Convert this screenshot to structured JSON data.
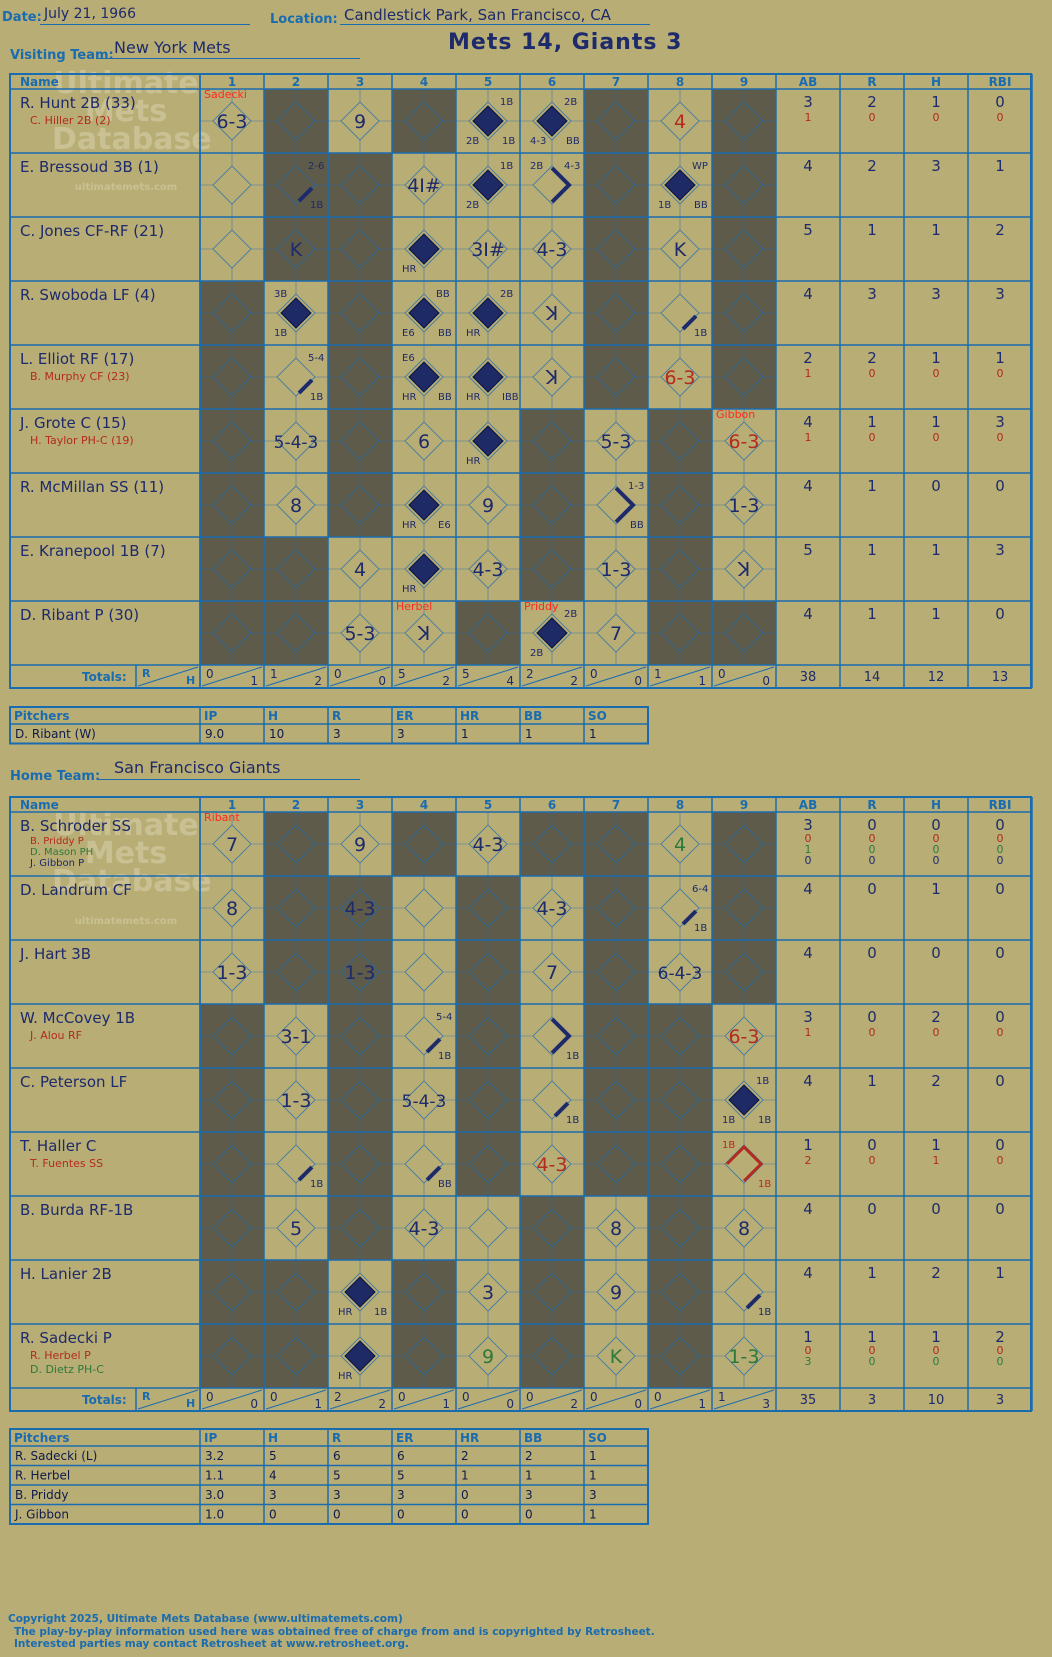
{
  "header": {
    "date_label": "Date:",
    "date": "July 21, 1966",
    "location_label": "Location:",
    "location": "Candlestick Park, San Francisco, CA",
    "visiting_label": "Visiting Team:",
    "visiting_team": "New York Mets",
    "home_label": "Home Team:",
    "home_team": "San Francisco Giants",
    "result": "Mets 14, Giants 3"
  },
  "columns": {
    "name": "Name",
    "innings": [
      "1",
      "2",
      "3",
      "4",
      "5",
      "6",
      "7",
      "8",
      "9"
    ],
    "stats": [
      "AB",
      "R",
      "H",
      "RBI"
    ],
    "totals_label": "Totals:",
    "r_label": "R",
    "h_label": "H"
  },
  "pitcher_headers": [
    "Pitchers",
    "IP",
    "H",
    "R",
    "ER",
    "HR",
    "BB",
    "SO"
  ],
  "watermark": {
    "line1": "Ultimate",
    "line2": "Mets",
    "line3": "Database",
    "url": "ultimatemets.com"
  },
  "visitor": {
    "shaded": [
      [
        2,
        4,
        7,
        9
      ],
      [
        2,
        3,
        7,
        9
      ],
      [
        2,
        3,
        7,
        9
      ],
      [
        1,
        3,
        7,
        9
      ],
      [
        1,
        3,
        7,
        9
      ],
      [
        1,
        3,
        6,
        8
      ],
      [
        1,
        3,
        6,
        8
      ],
      [
        1,
        2,
        6,
        8
      ],
      [
        1,
        2,
        5,
        8,
        9
      ]
    ],
    "players": [
      {
        "name": "R. Hunt 2B (33)",
        "subs": [
          {
            "name": "C. Hiller 2B (2)",
            "color": "#b42a1e"
          }
        ],
        "ab": "3",
        "r": "2",
        "h": "1",
        "rbi": "0",
        "sub_stats": [
          [
            "1",
            "0",
            "0",
            "0"
          ]
        ]
      },
      {
        "name": "E. Bressoud 3B (1)",
        "subs": [],
        "ab": "4",
        "r": "2",
        "h": "3",
        "rbi": "1",
        "sub_stats": []
      },
      {
        "name": "C. Jones CF-RF (21)",
        "subs": [],
        "ab": "5",
        "r": "1",
        "h": "1",
        "rbi": "2",
        "sub_stats": []
      },
      {
        "name": "R. Swoboda LF (4)",
        "subs": [],
        "ab": "4",
        "r": "3",
        "h": "3",
        "rbi": "3",
        "sub_stats": []
      },
      {
        "name": "L. Elliot RF (17)",
        "subs": [
          {
            "name": "B. Murphy CF (23)",
            "color": "#b42a1e"
          }
        ],
        "ab": "2",
        "r": "2",
        "h": "1",
        "rbi": "1",
        "sub_stats": [
          [
            "1",
            "0",
            "0",
            "0"
          ]
        ]
      },
      {
        "name": "J. Grote C (15)",
        "subs": [
          {
            "name": "H. Taylor PH-C (19)",
            "color": "#b42a1e"
          }
        ],
        "ab": "4",
        "r": "1",
        "h": "1",
        "rbi": "3",
        "sub_stats": [
          [
            "1",
            "0",
            "0",
            "0"
          ]
        ]
      },
      {
        "name": "R. McMillan SS (11)",
        "subs": [],
        "ab": "4",
        "r": "1",
        "h": "0",
        "rbi": "0",
        "sub_stats": []
      },
      {
        "name": "E. Kranepool 1B (7)",
        "subs": [],
        "ab": "5",
        "r": "1",
        "h": "1",
        "rbi": "3",
        "sub_stats": []
      },
      {
        "name": "D. Ribant P (30)",
        "subs": [],
        "ab": "4",
        "r": "1",
        "h": "1",
        "rbi": "0",
        "sub_stats": []
      }
    ],
    "plays": [
      {
        "row": 0,
        "inn": 1,
        "t": "6-3"
      },
      {
        "row": 0,
        "inn": 3,
        "t": "9"
      },
      {
        "row": 0,
        "inn": 5,
        "d": 1,
        "c": [
          "1B",
          "2B",
          "1B",
          ""
        ]
      },
      {
        "row": 0,
        "inn": 6,
        "d": 1,
        "c": [
          "2B",
          "4-3",
          "BB",
          ""
        ]
      },
      {
        "row": 0,
        "inn": 8,
        "t": "4",
        "col": "#b42a1e"
      },
      {
        "row": 1,
        "inn": 2,
        "p": 1,
        "c": [
          "2-6",
          "",
          "1B",
          ""
        ]
      },
      {
        "row": 1,
        "inn": 4,
        "t": "4I#"
      },
      {
        "row": 1,
        "inn": 5,
        "d": 1,
        "c": [
          "1B",
          "2B",
          "",
          ""
        ]
      },
      {
        "row": 1,
        "inn": 6,
        "p": 2,
        "c": [
          "4-3",
          "",
          "",
          "2B"
        ]
      },
      {
        "row": 1,
        "inn": 8,
        "d": 1,
        "c": [
          "WP",
          "1B",
          "BB",
          ""
        ]
      },
      {
        "row": 2,
        "inn": 2,
        "t": "K"
      },
      {
        "row": 2,
        "inn": 4,
        "d": 1,
        "c": [
          "",
          "HR",
          "",
          ""
        ]
      },
      {
        "row": 2,
        "inn": 5,
        "t": "3I#"
      },
      {
        "row": 2,
        "inn": 6,
        "t": "4-3"
      },
      {
        "row": 2,
        "inn": 8,
        "t": "K"
      },
      {
        "row": 3,
        "inn": 2,
        "d": 1,
        "c": [
          "",
          "1B",
          "",
          "3B"
        ]
      },
      {
        "row": 3,
        "inn": 4,
        "d": 1,
        "c": [
          "BB",
          "E6",
          "BB",
          ""
        ]
      },
      {
        "row": 3,
        "inn": 5,
        "d": 1,
        "c": [
          "2B",
          "HR",
          "",
          ""
        ]
      },
      {
        "row": 3,
        "inn": 6,
        "t": "ꓘ"
      },
      {
        "row": 3,
        "inn": 8,
        "p": 1,
        "c": [
          "",
          "",
          "1B",
          ""
        ]
      },
      {
        "row": 4,
        "inn": 2,
        "p": 1,
        "c": [
          "5-4",
          "",
          "1B",
          ""
        ]
      },
      {
        "row": 4,
        "inn": 4,
        "d": 1,
        "c": [
          "",
          "HR",
          "BB",
          "E6"
        ]
      },
      {
        "row": 4,
        "inn": 5,
        "d": 1,
        "c": [
          "",
          "HR",
          "IBB",
          ""
        ]
      },
      {
        "row": 4,
        "inn": 6,
        "t": "ꓘ"
      },
      {
        "row": 4,
        "inn": 8,
        "t": "6-3",
        "col": "#b42a1e"
      },
      {
        "row": 5,
        "inn": 2,
        "t": "5-4-3"
      },
      {
        "row": 5,
        "inn": 4,
        "t": "6"
      },
      {
        "row": 5,
        "inn": 5,
        "d": 1,
        "c": [
          "",
          "HR",
          "",
          ""
        ]
      },
      {
        "row": 5,
        "inn": 7,
        "t": "5-3"
      },
      {
        "row": 5,
        "inn": 9,
        "t": "6-3",
        "col": "#b42a1e"
      },
      {
        "row": 6,
        "inn": 2,
        "t": "8"
      },
      {
        "row": 6,
        "inn": 4,
        "d": 1,
        "c": [
          "",
          "HR",
          "E6",
          ""
        ]
      },
      {
        "row": 6,
        "inn": 5,
        "t": "9"
      },
      {
        "row": 6,
        "inn": 7,
        "p": 2,
        "c": [
          "1-3",
          "",
          "BB",
          ""
        ]
      },
      {
        "row": 6,
        "inn": 9,
        "t": "1-3"
      },
      {
        "row": 7,
        "inn": 3,
        "t": "4"
      },
      {
        "row": 7,
        "inn": 4,
        "d": 1,
        "c": [
          "",
          "HR",
          "",
          ""
        ]
      },
      {
        "row": 7,
        "inn": 5,
        "t": "4-3"
      },
      {
        "row": 7,
        "inn": 7,
        "t": "1-3"
      },
      {
        "row": 7,
        "inn": 9,
        "t": "ꓘ"
      },
      {
        "row": 8,
        "inn": 3,
        "t": "5-3"
      },
      {
        "row": 8,
        "inn": 4,
        "t": "ꓘ"
      },
      {
        "row": 8,
        "inn": 6,
        "d": 1,
        "c": [
          "2B",
          "2B",
          "",
          ""
        ]
      },
      {
        "row": 8,
        "inn": 7,
        "t": "7"
      }
    ],
    "changes": [
      {
        "row": 0,
        "inn": 1,
        "name": "Sadecki"
      },
      {
        "row": 5,
        "inn": 9,
        "name": "Gibbon"
      },
      {
        "row": 8,
        "inn": 4,
        "name": "Herbel"
      },
      {
        "row": 8,
        "inn": 6,
        "name": "Priddy"
      }
    ],
    "totals": [
      [
        "0",
        "1"
      ],
      [
        "1",
        "2"
      ],
      [
        "0",
        "0"
      ],
      [
        "5",
        "2"
      ],
      [
        "5",
        "4"
      ],
      [
        "2",
        "2"
      ],
      [
        "0",
        "0"
      ],
      [
        "1",
        "1"
      ],
      [
        "0",
        "0"
      ]
    ],
    "totals_stats": [
      "38",
      "14",
      "12",
      "13"
    ],
    "pitchers": [
      {
        "name": "D. Ribant (W)",
        "ip": "9.0",
        "h": "10",
        "r": "3",
        "er": "3",
        "hr": "1",
        "bb": "1",
        "so": "1"
      }
    ]
  },
  "home": {
    "shaded": [
      [
        2,
        4,
        6,
        7,
        9
      ],
      [
        2,
        3,
        5,
        7,
        9
      ],
      [
        2,
        3,
        5,
        7,
        9
      ],
      [
        1,
        3,
        5,
        7,
        8
      ],
      [
        1,
        3,
        5,
        7,
        8
      ],
      [
        1,
        3,
        5,
        7,
        8
      ],
      [
        1,
        3,
        6,
        8
      ],
      [
        1,
        2,
        4,
        6,
        8
      ],
      [
        1,
        2,
        4,
        6,
        8
      ]
    ],
    "players": [
      {
        "name": "B. Schroder SS",
        "subs": [
          {
            "name": "B. Priddy P",
            "color": "#b42a1e"
          },
          {
            "name": "D. Mason PH",
            "color": "#2b7a3a"
          },
          {
            "name": "J. Gibbon P",
            "color": "#1d2a6b"
          }
        ],
        "ab": "3",
        "r": "0",
        "h": "0",
        "rbi": "0",
        "sub_stats": [
          [
            "0",
            "0",
            "0",
            "0"
          ],
          [
            "1",
            "0",
            "0",
            "0"
          ],
          [
            "0",
            "0",
            "0",
            "0"
          ]
        ]
      },
      {
        "name": "D. Landrum CF",
        "subs": [],
        "ab": "4",
        "r": "0",
        "h": "1",
        "rbi": "0",
        "sub_stats": []
      },
      {
        "name": "J. Hart 3B",
        "subs": [],
        "ab": "4",
        "r": "0",
        "h": "0",
        "rbi": "0",
        "sub_stats": []
      },
      {
        "name": "W. McCovey 1B",
        "subs": [
          {
            "name": "J. Alou RF",
            "color": "#b42a1e"
          }
        ],
        "ab": "3",
        "r": "0",
        "h": "2",
        "rbi": "0",
        "sub_stats": [
          [
            "1",
            "0",
            "0",
            "0"
          ]
        ]
      },
      {
        "name": "C. Peterson LF",
        "subs": [],
        "ab": "4",
        "r": "1",
        "h": "2",
        "rbi": "0",
        "sub_stats": []
      },
      {
        "name": "T. Haller C",
        "subs": [
          {
            "name": "T. Fuentes SS",
            "color": "#b42a1e"
          }
        ],
        "ab": "1",
        "r": "0",
        "h": "1",
        "rbi": "0",
        "sub_stats": [
          [
            "2",
            "0",
            "1",
            "0"
          ]
        ]
      },
      {
        "name": "B. Burda RF-1B",
        "subs": [],
        "ab": "4",
        "r": "0",
        "h": "0",
        "rbi": "0",
        "sub_stats": []
      },
      {
        "name": "H. Lanier 2B",
        "subs": [],
        "ab": "4",
        "r": "1",
        "h": "2",
        "rbi": "1",
        "sub_stats": []
      },
      {
        "name": "R. Sadecki P",
        "subs": [
          {
            "name": "R. Herbel P",
            "color": "#b42a1e"
          },
          {
            "name": "D. Dietz PH-C",
            "color": "#2b7a3a"
          }
        ],
        "ab": "1",
        "r": "1",
        "h": "1",
        "rbi": "2",
        "sub_stats": [
          [
            "0",
            "0",
            "0",
            "0"
          ],
          [
            "3",
            "0",
            "0",
            "0"
          ]
        ]
      }
    ],
    "plays": [
      {
        "row": 0,
        "inn": 1,
        "t": "7"
      },
      {
        "row": 0,
        "inn": 3,
        "t": "9"
      },
      {
        "row": 0,
        "inn": 5,
        "t": "4-3"
      },
      {
        "row": 0,
        "inn": 8,
        "t": "4",
        "col": "#2b7a3a"
      },
      {
        "row": 1,
        "inn": 1,
        "t": "8"
      },
      {
        "row": 1,
        "inn": 3,
        "t": "4-3"
      },
      {
        "row": 1,
        "inn": 6,
        "t": "4-3"
      },
      {
        "row": 1,
        "inn": 8,
        "p": 1,
        "c": [
          "6-4",
          "",
          "1B",
          ""
        ]
      },
      {
        "row": 2,
        "inn": 1,
        "t": "1-3"
      },
      {
        "row": 2,
        "inn": 3,
        "t": "1-3"
      },
      {
        "row": 2,
        "inn": 6,
        "t": "7"
      },
      {
        "row": 2,
        "inn": 8,
        "t": "6-4-3"
      },
      {
        "row": 3,
        "inn": 2,
        "t": "3-1"
      },
      {
        "row": 3,
        "inn": 4,
        "p": 1,
        "c": [
          "5-4",
          "",
          "1B",
          ""
        ]
      },
      {
        "row": 3,
        "inn": 6,
        "p": 2,
        "c": [
          "",
          "",
          "1B",
          ""
        ]
      },
      {
        "row": 3,
        "inn": 9,
        "t": "6-3",
        "col": "#b42a1e"
      },
      {
        "row": 4,
        "inn": 2,
        "t": "1-3"
      },
      {
        "row": 4,
        "inn": 4,
        "t": "5-4-3"
      },
      {
        "row": 4,
        "inn": 6,
        "p": 1,
        "c": [
          "",
          "",
          "1B",
          ""
        ]
      },
      {
        "row": 4,
        "inn": 9,
        "d": 1,
        "c": [
          "1B",
          "1B",
          "1B",
          ""
        ]
      },
      {
        "row": 5,
        "inn": 2,
        "p": 1,
        "c": [
          "",
          "",
          "1B",
          ""
        ]
      },
      {
        "row": 5,
        "inn": 4,
        "p": 1,
        "c": [
          "",
          "",
          "BB",
          ""
        ]
      },
      {
        "row": 5,
        "inn": 6,
        "t": "4-3",
        "col": "#b42a1e"
      },
      {
        "row": 5,
        "inn": 9,
        "p": 3,
        "col": "#b42a1e",
        "c": [
          "",
          "",
          "1B",
          "1B"
        ]
      },
      {
        "row": 6,
        "inn": 2,
        "t": "5"
      },
      {
        "row": 6,
        "inn": 4,
        "t": "4-3"
      },
      {
        "row": 6,
        "inn": 7,
        "t": "8"
      },
      {
        "row": 6,
        "inn": 9,
        "t": "8"
      },
      {
        "row": 7,
        "inn": 3,
        "d": 1,
        "c": [
          "",
          "HR",
          "1B",
          ""
        ]
      },
      {
        "row": 7,
        "inn": 5,
        "t": "3"
      },
      {
        "row": 7,
        "inn": 7,
        "t": "9"
      },
      {
        "row": 7,
        "inn": 9,
        "p": 1,
        "c": [
          "",
          "",
          "1B",
          ""
        ]
      },
      {
        "row": 8,
        "inn": 3,
        "d": 1,
        "c": [
          "",
          "HR",
          "",
          ""
        ]
      },
      {
        "row": 8,
        "inn": 5,
        "t": "9",
        "col": "#2b7a3a"
      },
      {
        "row": 8,
        "inn": 7,
        "t": "K",
        "col": "#2b7a3a"
      },
      {
        "row": 8,
        "inn": 9,
        "t": "1-3",
        "col": "#2b7a3a"
      }
    ],
    "changes": [
      {
        "row": 0,
        "inn": 1,
        "name": "Ribant"
      }
    ],
    "totals": [
      [
        "0",
        "0"
      ],
      [
        "0",
        "1"
      ],
      [
        "2",
        "2"
      ],
      [
        "0",
        "1"
      ],
      [
        "0",
        "0"
      ],
      [
        "0",
        "2"
      ],
      [
        "0",
        "0"
      ],
      [
        "0",
        "1"
      ],
      [
        "1",
        "3"
      ]
    ],
    "totals_stats": [
      "35",
      "3",
      "10",
      "3"
    ],
    "pitchers": [
      {
        "name": "R. Sadecki (L)",
        "ip": "3.2",
        "h": "5",
        "r": "6",
        "er": "6",
        "hr": "2",
        "bb": "2",
        "so": "1"
      },
      {
        "name": "R. Herbel",
        "ip": "1.1",
        "h": "4",
        "r": "5",
        "er": "5",
        "hr": "1",
        "bb": "1",
        "so": "1"
      },
      {
        "name": "B. Priddy",
        "ip": "3.0",
        "h": "3",
        "r": "3",
        "er": "3",
        "hr": "0",
        "bb": "3",
        "so": "3"
      },
      {
        "name": "J. Gibbon",
        "ip": "1.0",
        "h": "0",
        "r": "0",
        "er": "0",
        "hr": "0",
        "bb": "0",
        "so": "1"
      }
    ]
  },
  "footer": {
    "copyright": "Copyright 2025, Ultimate Mets Database (www.ultimatemets.com)",
    "line2": "The play-by-play information used here was obtained free of charge from and is copyrighted by Retrosheet.",
    "line3": "Interested parties may contact Retrosheet at www.retrosheet.org."
  },
  "colors": {
    "background": "#b8ad75",
    "grid": "#1a6cb0",
    "shade": "#5e5b4a",
    "ink": "#1d2a6b",
    "red_ink": "#b42a1e",
    "green_ink": "#2b7a3a",
    "alert": "#ff2a1a"
  }
}
